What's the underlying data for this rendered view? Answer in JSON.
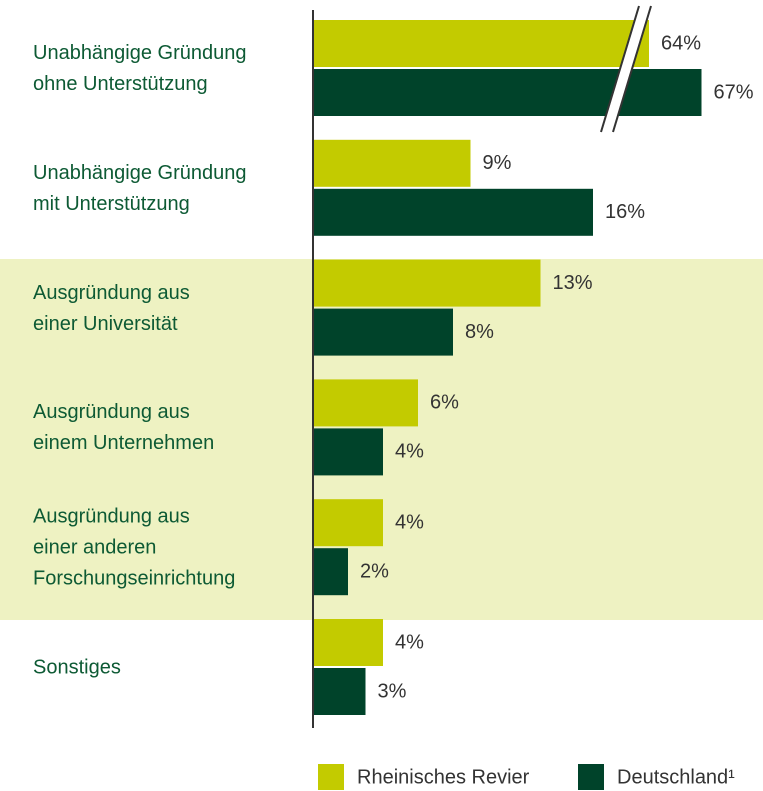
{
  "chart_data": {
    "type": "barh",
    "categories": [
      "Unabhängige Gründung\nohne Unterstützung",
      "Unabhängige Gründung\nmit Unterstützung",
      "Ausgründung aus\neiner Universität",
      "Ausgründung aus\neinem Unternehmen",
      "Ausgründung aus\neiner anderen\nForschungseinrichtung",
      "Sonstiges"
    ],
    "series": [
      {
        "name": "Rheinisches Revier",
        "color": "#c3cb00",
        "values": [
          64,
          9,
          13,
          6,
          4,
          4
        ],
        "value_labels": [
          "64%",
          "9%",
          "13%",
          "6%",
          "4%",
          "4%"
        ]
      },
      {
        "name": "Deutschland¹",
        "color": "#00432a",
        "values": [
          67,
          16,
          8,
          4,
          2,
          3
        ],
        "value_labels": [
          "67%",
          "16%",
          "8%",
          "4%",
          "2%",
          "3%"
        ]
      }
    ],
    "axis_break": true,
    "legend": "bottom"
  }
}
